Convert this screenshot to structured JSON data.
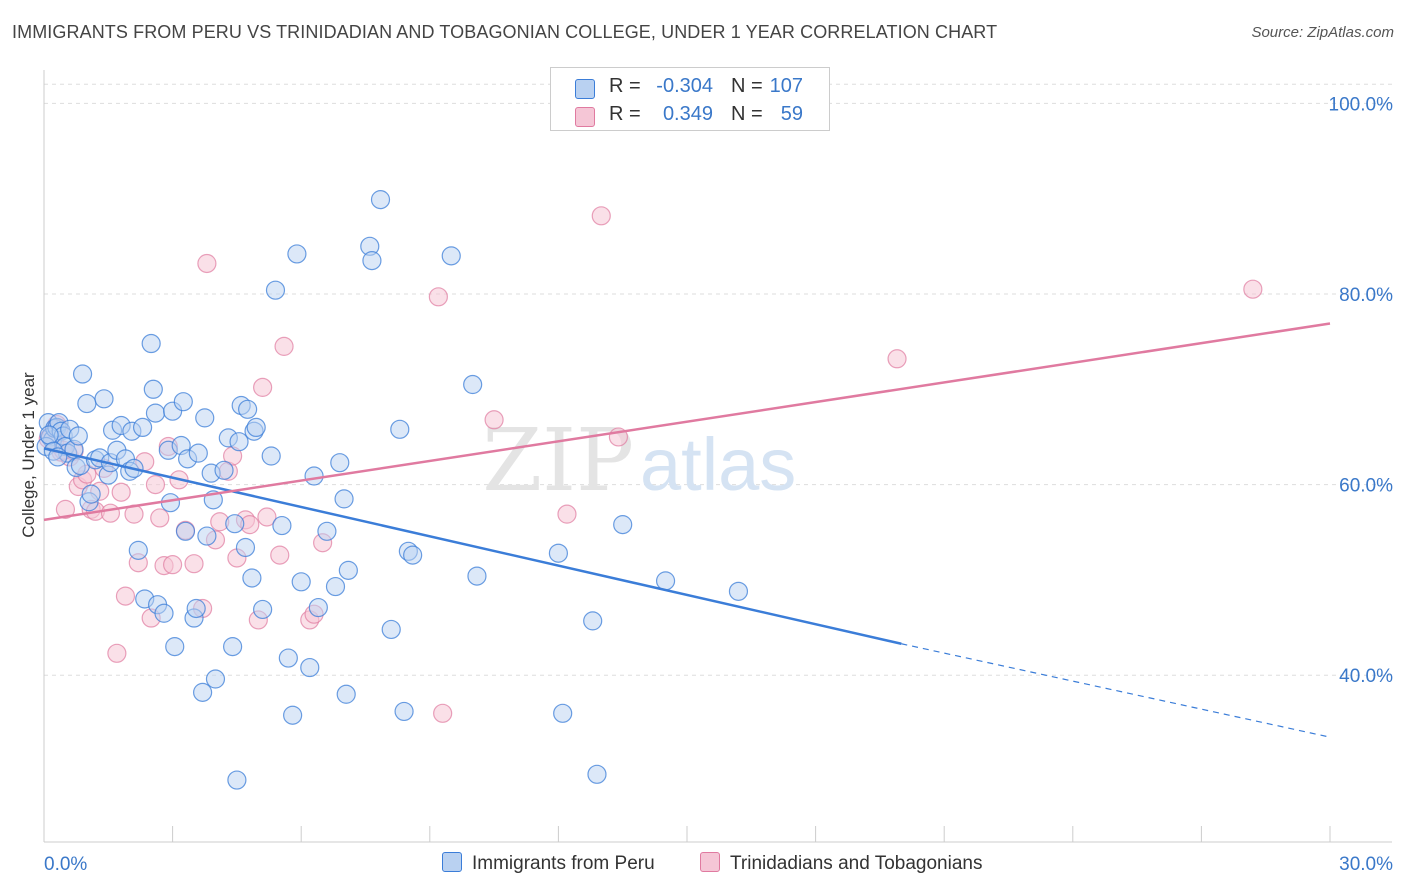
{
  "title": "IMMIGRANTS FROM PERU VS TRINIDADIAN AND TOBAGONIAN COLLEGE, UNDER 1 YEAR CORRELATION CHART",
  "source": "Source: ZipAtlas.com",
  "watermark": "ZIPatlas",
  "legend": {
    "series1": {
      "r_label": "R =",
      "r_value": "-0.304",
      "n_label": "N =",
      "n_value": "107"
    },
    "series2": {
      "r_label": "R =",
      "r_value": "0.349",
      "n_label": "N =",
      "n_value": "59"
    }
  },
  "bottom_legend": {
    "series1": "Immigrants from Peru",
    "series2": "Trinidadians and Tobagonians"
  },
  "chart_data": {
    "type": "scatter",
    "xlabel": "",
    "ylabel": "College, Under 1 year",
    "xlim": [
      0,
      30
    ],
    "ylim": [
      22.5,
      103.5
    ],
    "x_tick_labels": [
      "0.0%",
      "30.0%"
    ],
    "y_ticks": [
      40,
      60,
      80,
      100
    ],
    "y_tick_labels": [
      "40.0%",
      "60.0%",
      "80.0%",
      "100.0%"
    ],
    "grid": "horizontal dashed",
    "legend_position": "top-center",
    "colors": {
      "series1": "#3b7dd8",
      "series2": "#e07aa0",
      "fill1": "#b9d1f1",
      "fill2": "#f5c6d6"
    },
    "series": [
      {
        "name": "Immigrants from Peru",
        "color": "#3b7dd8",
        "trend": {
          "x": [
            0,
            20.0
          ],
          "y": [
            63.8,
            43.3
          ],
          "dashed_to": {
            "x": 30,
            "y": 33.5
          }
        },
        "points": [
          [
            0.1,
            66.5
          ],
          [
            0.15,
            65.0
          ],
          [
            0.2,
            64.7
          ],
          [
            0.25,
            65.9
          ],
          [
            0.3,
            66.0
          ],
          [
            0.35,
            66.5
          ],
          [
            0.4,
            65.6
          ],
          [
            0.45,
            65.1
          ],
          [
            0.5,
            64.0
          ],
          [
            0.55,
            63.3
          ],
          [
            0.6,
            65.8
          ],
          [
            0.7,
            63.7
          ],
          [
            0.75,
            61.8
          ],
          [
            0.8,
            65.1
          ],
          [
            0.85,
            62.0
          ],
          [
            0.9,
            71.6
          ],
          [
            1.0,
            68.5
          ],
          [
            1.05,
            58.2
          ],
          [
            1.1,
            59.0
          ],
          [
            1.2,
            62.6
          ],
          [
            1.3,
            62.8
          ],
          [
            1.4,
            69.0
          ],
          [
            1.5,
            61.0
          ],
          [
            1.55,
            62.3
          ],
          [
            1.6,
            65.7
          ],
          [
            1.7,
            63.6
          ],
          [
            1.8,
            66.2
          ],
          [
            1.9,
            62.7
          ],
          [
            2.0,
            61.4
          ],
          [
            2.05,
            65.6
          ],
          [
            2.1,
            61.7
          ],
          [
            2.2,
            53.1
          ],
          [
            2.3,
            66.0
          ],
          [
            2.35,
            48.0
          ],
          [
            2.5,
            74.8
          ],
          [
            2.55,
            70.0
          ],
          [
            2.6,
            67.5
          ],
          [
            2.65,
            47.4
          ],
          [
            2.8,
            46.5
          ],
          [
            2.9,
            63.6
          ],
          [
            2.95,
            58.1
          ],
          [
            3.0,
            67.7
          ],
          [
            3.05,
            43.0
          ],
          [
            3.2,
            64.1
          ],
          [
            3.25,
            68.7
          ],
          [
            3.3,
            55.1
          ],
          [
            3.35,
            62.7
          ],
          [
            3.5,
            46.0
          ],
          [
            3.55,
            47.0
          ],
          [
            3.6,
            63.3
          ],
          [
            3.7,
            38.2
          ],
          [
            3.75,
            67.0
          ],
          [
            3.8,
            54.6
          ],
          [
            3.9,
            61.2
          ],
          [
            3.95,
            58.4
          ],
          [
            4.0,
            39.6
          ],
          [
            4.2,
            61.5
          ],
          [
            4.3,
            64.9
          ],
          [
            4.4,
            43.0
          ],
          [
            4.45,
            55.9
          ],
          [
            4.5,
            29.0
          ],
          [
            4.55,
            64.5
          ],
          [
            4.6,
            68.3
          ],
          [
            4.7,
            53.4
          ],
          [
            4.75,
            67.9
          ],
          [
            4.85,
            50.2
          ],
          [
            4.9,
            65.6
          ],
          [
            4.95,
            66.0
          ],
          [
            5.1,
            46.9
          ],
          [
            5.3,
            63.0
          ],
          [
            5.4,
            80.4
          ],
          [
            5.55,
            55.7
          ],
          [
            5.7,
            41.8
          ],
          [
            5.8,
            35.8
          ],
          [
            5.9,
            84.2
          ],
          [
            6.0,
            49.8
          ],
          [
            6.2,
            40.8
          ],
          [
            6.3,
            60.9
          ],
          [
            6.4,
            47.1
          ],
          [
            6.6,
            55.1
          ],
          [
            6.8,
            49.3
          ],
          [
            6.9,
            62.3
          ],
          [
            7.0,
            58.5
          ],
          [
            7.05,
            38.0
          ],
          [
            7.1,
            51.0
          ],
          [
            7.6,
            85.0
          ],
          [
            7.65,
            83.5
          ],
          [
            7.85,
            89.9
          ],
          [
            8.1,
            44.8
          ],
          [
            8.3,
            65.8
          ],
          [
            8.4,
            36.2
          ],
          [
            8.5,
            53.0
          ],
          [
            8.6,
            52.6
          ],
          [
            9.5,
            84.0
          ],
          [
            10.0,
            70.5
          ],
          [
            10.1,
            50.4
          ],
          [
            12.0,
            52.8
          ],
          [
            12.1,
            36.0
          ],
          [
            12.8,
            45.7
          ],
          [
            12.9,
            29.6
          ],
          [
            13.5,
            55.8
          ],
          [
            14.5,
            49.9
          ],
          [
            16.2,
            48.8
          ],
          [
            0.05,
            64.0
          ],
          [
            0.12,
            65.2
          ],
          [
            0.22,
            63.5
          ],
          [
            0.32,
            62.9
          ]
        ]
      },
      {
        "name": "Trinidadians and Tobagonians",
        "color": "#e07aa0",
        "trend": {
          "x": [
            0,
            30
          ],
          "y": [
            56.3,
            76.9
          ]
        },
        "points": [
          [
            0.1,
            64.8
          ],
          [
            0.2,
            65.4
          ],
          [
            0.3,
            66.3
          ],
          [
            0.4,
            63.4
          ],
          [
            0.5,
            57.4
          ],
          [
            0.6,
            62.9
          ],
          [
            0.7,
            63.5
          ],
          [
            0.8,
            59.8
          ],
          [
            0.9,
            60.5
          ],
          [
            1.0,
            61.1
          ],
          [
            1.1,
            57.4
          ],
          [
            1.2,
            57.2
          ],
          [
            1.3,
            59.3
          ],
          [
            1.4,
            61.7
          ],
          [
            1.55,
            57.0
          ],
          [
            1.7,
            42.3
          ],
          [
            1.8,
            59.2
          ],
          [
            1.9,
            48.3
          ],
          [
            2.1,
            56.9
          ],
          [
            2.2,
            51.8
          ],
          [
            2.35,
            62.4
          ],
          [
            2.5,
            46.0
          ],
          [
            2.6,
            60.0
          ],
          [
            2.7,
            56.5
          ],
          [
            2.8,
            51.5
          ],
          [
            2.9,
            64.0
          ],
          [
            3.0,
            51.6
          ],
          [
            3.15,
            60.5
          ],
          [
            3.3,
            55.2
          ],
          [
            3.5,
            51.7
          ],
          [
            3.7,
            47.0
          ],
          [
            3.8,
            83.2
          ],
          [
            4.0,
            54.2
          ],
          [
            4.1,
            56.1
          ],
          [
            4.3,
            61.4
          ],
          [
            4.4,
            63.0
          ],
          [
            4.5,
            52.3
          ],
          [
            4.7,
            56.3
          ],
          [
            4.8,
            55.8
          ],
          [
            5.0,
            45.8
          ],
          [
            5.1,
            70.2
          ],
          [
            5.2,
            56.6
          ],
          [
            5.5,
            52.6
          ],
          [
            5.6,
            74.5
          ],
          [
            6.2,
            45.8
          ],
          [
            6.3,
            46.4
          ],
          [
            6.5,
            53.9
          ],
          [
            9.2,
            79.7
          ],
          [
            9.3,
            36.0
          ],
          [
            10.5,
            66.8
          ],
          [
            12.2,
            56.9
          ],
          [
            13.0,
            88.2
          ],
          [
            13.4,
            65.0
          ],
          [
            19.9,
            73.2
          ],
          [
            28.2,
            80.5
          ],
          [
            0.15,
            65.0
          ],
          [
            0.25,
            64.3
          ],
          [
            0.35,
            65.9
          ],
          [
            0.45,
            63.6
          ]
        ]
      }
    ]
  }
}
